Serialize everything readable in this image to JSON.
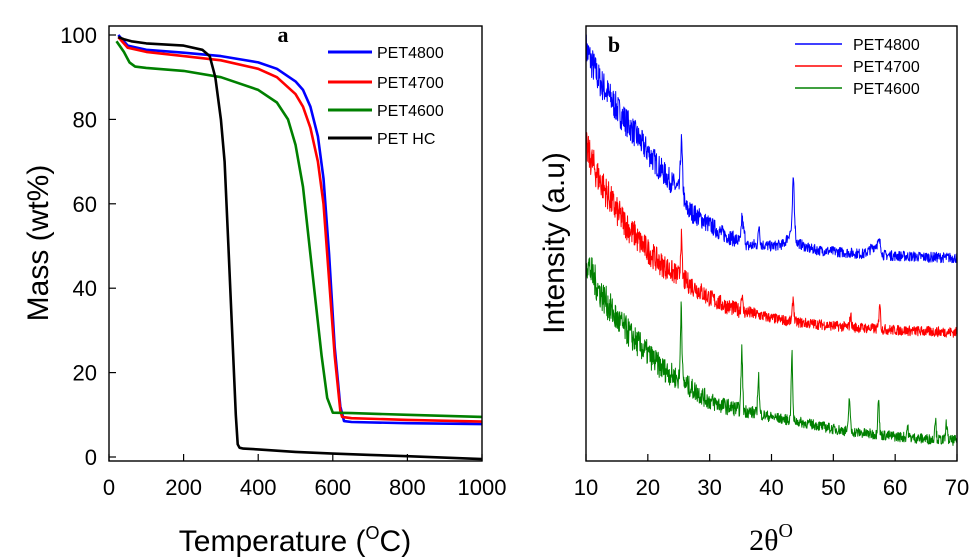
{
  "chart_data": [
    {
      "type": "line",
      "panel_label": "a",
      "xlabel": "Temperature (",
      "xlabel_sup": "O",
      "xlabel_tail": "C)",
      "ylabel": "Mass (wt%)",
      "xlim": [
        0,
        1000
      ],
      "ylim": [
        0,
        100
      ],
      "xticks": [
        "0",
        "200",
        "400",
        "600",
        "800",
        "1000"
      ],
      "yticks": [
        "0",
        "20",
        "40",
        "60",
        "80",
        "100"
      ],
      "legend_position": "top-right",
      "series": [
        {
          "name": "PET4800",
          "color": "#0000ff",
          "x": [
            25,
            50,
            100,
            200,
            300,
            400,
            450,
            500,
            520,
            540,
            560,
            575,
            590,
            605,
            620,
            630,
            650,
            800,
            1000
          ],
          "y": [
            100,
            97.5,
            96.5,
            95.8,
            95,
            93.5,
            92,
            89,
            87,
            83,
            76,
            66,
            48,
            26,
            12,
            8.5,
            8.3,
            8.0,
            7.8
          ]
        },
        {
          "name": "PET4700",
          "color": "#ff0000",
          "x": [
            25,
            50,
            100,
            200,
            300,
            400,
            450,
            500,
            520,
            540,
            560,
            575,
            590,
            605,
            620,
            625,
            650,
            800,
            1000
          ],
          "y": [
            99.5,
            97,
            96,
            95,
            94,
            92,
            90,
            86,
            83,
            78,
            70,
            60,
            42,
            24,
            11,
            9.5,
            9.2,
            8.8,
            8.4
          ]
        },
        {
          "name": "PET4600",
          "color": "#008000",
          "x": [
            20,
            40,
            55,
            70,
            100,
            200,
            300,
            400,
            450,
            480,
            500,
            520,
            540,
            555,
            570,
            585,
            600,
            650,
            800,
            1000
          ],
          "y": [
            98.5,
            96,
            93.5,
            92.5,
            92.2,
            91.5,
            90,
            87,
            84,
            80,
            74,
            64,
            48,
            36,
            24,
            14,
            10.5,
            10.4,
            10.0,
            9.5
          ]
        },
        {
          "name": "PET HC",
          "color": "#000000",
          "x": [
            25,
            40,
            60,
            100,
            200,
            250,
            270,
            285,
            300,
            310,
            320,
            330,
            340,
            345,
            350,
            360,
            400,
            500,
            600,
            700,
            800,
            1000
          ],
          "y": [
            99.5,
            99,
            98.5,
            98,
            97.5,
            96.5,
            95,
            90,
            80,
            70,
            50,
            30,
            10,
            3,
            2.2,
            2,
            1.8,
            1.2,
            0.8,
            0.5,
            0.2,
            -0.5
          ]
        }
      ]
    },
    {
      "type": "line",
      "panel_label": "b",
      "xlabel": "2θ",
      "xlabel_sup": "O",
      "ylabel": "Intensity (a.u)",
      "xlim": [
        10,
        70
      ],
      "xticks": [
        "10",
        "20",
        "30",
        "40",
        "50",
        "60",
        "70"
      ],
      "y_ticks_shown": false,
      "legend_position": "top-right",
      "series": [
        {
          "name": "PET4800",
          "color": "#0000ff",
          "x": [
            10,
            12,
            15,
            18,
            20,
            22,
            25,
            25.5,
            26,
            28,
            30,
            32,
            35,
            35.2,
            36,
            38,
            40,
            42,
            43.3,
            43.6,
            44,
            46,
            48,
            50,
            55,
            57.5,
            58,
            60,
            65,
            70
          ],
          "y": [
            95,
            88,
            81,
            75,
            71,
            67,
            62,
            67,
            58,
            56,
            54,
            52,
            50,
            55,
            49,
            49.5,
            49,
            49.5,
            53,
            59,
            50,
            48.5,
            48,
            47.8,
            47.2,
            50,
            47,
            46.8,
            46.5,
            46.3
          ],
          "peaks": [
            [
              25.4,
              73
            ],
            [
              35.2,
              56
            ],
            [
              38,
              54
            ],
            [
              43.5,
              64
            ],
            [
              57.5,
              50
            ]
          ]
        },
        {
          "name": "PET4700",
          "color": "#ff0000",
          "x": [
            10,
            12,
            15,
            18,
            20,
            22,
            25,
            28,
            30,
            32,
            35,
            38,
            40,
            42,
            45,
            48,
            50,
            55,
            60,
            65,
            70
          ],
          "y": [
            72,
            65,
            57,
            51,
            48,
            45,
            42,
            39,
            37,
            35.5,
            34,
            33,
            32.3,
            31.8,
            31.2,
            30.8,
            30.5,
            30,
            29.5,
            29.2,
            29
          ],
          "peaks": [
            [
              18,
              52
            ],
            [
              25.4,
              51
            ],
            [
              35.2,
              38
            ],
            [
              43.5,
              37
            ],
            [
              52.8,
              33
            ],
            [
              57.5,
              36
            ]
          ]
        },
        {
          "name": "PET4600",
          "color": "#008000",
          "x": [
            10,
            12,
            15,
            18,
            20,
            22,
            25,
            28,
            30,
            32,
            35,
            38,
            40,
            42,
            45,
            48,
            50,
            55,
            60,
            65,
            70
          ],
          "y": [
            46,
            39,
            32,
            27,
            24,
            21,
            18,
            15,
            13,
            12,
            11,
            10,
            9.3,
            8.8,
            8,
            7.2,
            6.5,
            5.5,
            4.8,
            4.2,
            3.8
          ],
          "peaks": [
            [
              25.4,
              36
            ],
            [
              35.2,
              25
            ],
            [
              37.9,
              19
            ],
            [
              43.3,
              24
            ],
            [
              52.6,
              14
            ],
            [
              57.3,
              14
            ],
            [
              62,
              7
            ],
            [
              66.5,
              9
            ],
            [
              68.3,
              8
            ]
          ]
        }
      ]
    }
  ]
}
